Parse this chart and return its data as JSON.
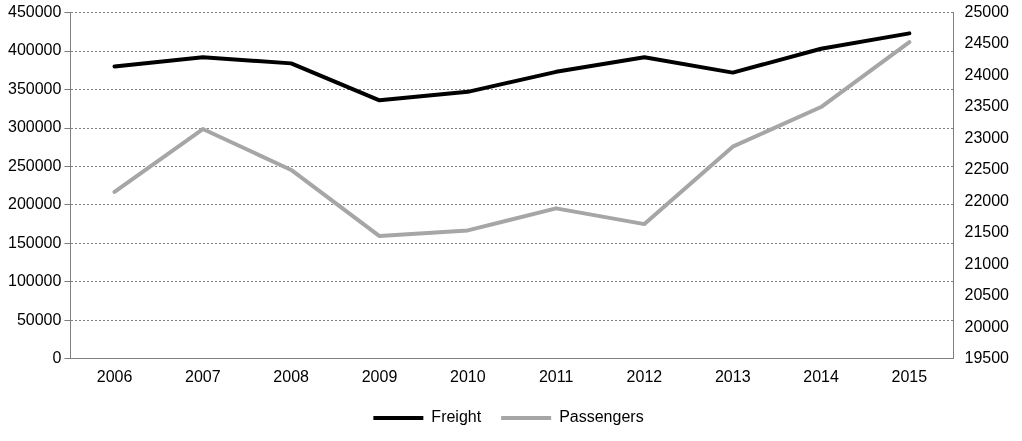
{
  "chart_data": {
    "type": "line",
    "categories": [
      "2006",
      "2007",
      "2008",
      "2009",
      "2010",
      "2011",
      "2012",
      "2013",
      "2014",
      "2015"
    ],
    "series": [
      {
        "name": "Freight",
        "color": "#000000",
        "values": [
          380000,
          392000,
          384000,
          336000,
          347000,
          373000,
          392000,
          372000,
          403000,
          423000
        ]
      },
      {
        "name": "Passengers",
        "color": "#a6a6a6",
        "axis": "y2",
        "values": [
          22150,
          23150,
          22500,
          21450,
          21540,
          21890,
          21640,
          22870,
          23500,
          24530
        ]
      }
    ],
    "ylim": [
      0,
      450000
    ],
    "yticks": [
      0,
      50000,
      100000,
      150000,
      200000,
      250000,
      300000,
      350000,
      400000,
      450000
    ],
    "y2lim": [
      19500,
      25000
    ],
    "y2ticks": [
      19500,
      20000,
      20500,
      21000,
      21500,
      22000,
      22500,
      23000,
      23500,
      24000,
      24500,
      25000
    ],
    "grid": "y",
    "legend": "bottom",
    "marker": "none",
    "line_style": "solid"
  }
}
